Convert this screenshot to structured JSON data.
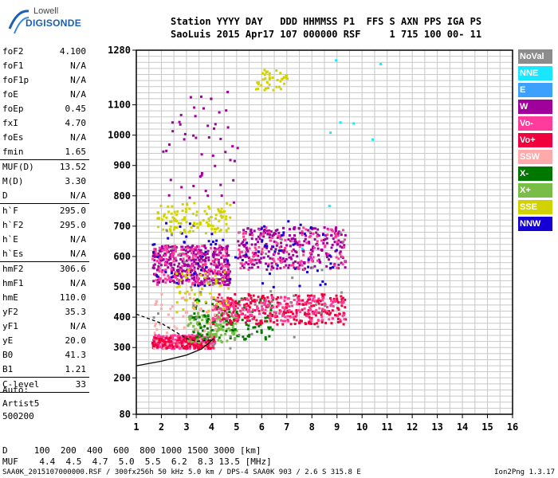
{
  "logo": {
    "line1": "Lowell",
    "line2": "DIGISONDE"
  },
  "header": {
    "line1": "Station YYYY DAY   DDD HHMMSS P1  FFS S AXN PPS IGA PS",
    "line2": "SaoLuis 2015 Apr17 107 000000 RSF     1 715 100 00- 11"
  },
  "params": [
    {
      "name": "foF2",
      "value": "4.100"
    },
    {
      "name": "foF1",
      "value": "N/A"
    },
    {
      "name": "foF1p",
      "value": "N/A"
    },
    {
      "name": "foE",
      "value": "N/A"
    },
    {
      "name": "foEp",
      "value": "0.45"
    },
    {
      "name": "fxI",
      "value": "4.70"
    },
    {
      "name": "foEs",
      "value": "N/A"
    },
    {
      "name": "fmin",
      "value": "1.65"
    },
    {
      "name": "MUF(D)",
      "value": "13.52"
    },
    {
      "name": "M(D)",
      "value": "3.30"
    },
    {
      "name": "D",
      "value": "N/A"
    },
    {
      "name": "h`F",
      "value": "295.0"
    },
    {
      "name": "h`F2",
      "value": "295.0"
    },
    {
      "name": "h`E",
      "value": "N/A"
    },
    {
      "name": "h`Es",
      "value": "N/A"
    },
    {
      "name": "hmF2",
      "value": "306.6"
    },
    {
      "name": "hmF1",
      "value": "N/A"
    },
    {
      "name": "hmE",
      "value": "110.0"
    },
    {
      "name": "yF2",
      "value": "35.3"
    },
    {
      "name": "yF1",
      "value": "N/A"
    },
    {
      "name": "yE",
      "value": "20.0"
    },
    {
      "name": "B0",
      "value": "41.3"
    },
    {
      "name": "B1",
      "value": "1.21"
    },
    {
      "name": "C-level",
      "value": "33"
    }
  ],
  "auto": {
    "line1": "Auto:",
    "line2": "Artist5",
    "line3": "500200"
  },
  "legend": [
    {
      "label": "NoVal",
      "color": "#8c8c8c"
    },
    {
      "label": "NNE",
      "color": "#19e6ff"
    },
    {
      "label": "E",
      "color": "#3ca0ff"
    },
    {
      "label": "W",
      "color": "#a0009b"
    },
    {
      "label": "Vo-",
      "color": "#ff3c9b"
    },
    {
      "label": "Vo+",
      "color": "#f0003c"
    },
    {
      "label": "SSW",
      "color": "#ffaaaa"
    },
    {
      "label": "X-",
      "color": "#007800"
    },
    {
      "label": "X+",
      "color": "#78be46"
    },
    {
      "label": "SSE",
      "color": "#d2d200"
    },
    {
      "label": "NNW",
      "color": "#1400d2"
    }
  ],
  "muf_table": {
    "d_row": "D     100  200  400  600  800 1000 1500 3000 [km]",
    "muf_row": "MUF    4.4  4.5  4.7  5.0  5.5  6.2  8.3 13.5 [MHz]"
  },
  "footer": {
    "left": "SAA0K_2015107000000.RSF / 300fx256h 50 kHz 5.0 km / DPS-4 SAA0K 903 / 2.6 S 315.8 E",
    "right": "Ion2Png 1.3.17"
  },
  "chart_data": {
    "type": "scatter",
    "title": "",
    "xlabel": "",
    "ylabel": "",
    "xlim": [
      1,
      16
    ],
    "ylim": [
      80,
      1280
    ],
    "x_ticks": [
      "1",
      "2",
      "3",
      "4",
      "5",
      "6",
      "7",
      "8",
      "9",
      "10",
      "11",
      "12",
      "13",
      "14",
      "15",
      "16"
    ],
    "y_ticks": [
      {
        "value": 80,
        "label": "80"
      },
      {
        "value": 200,
        "label": "200"
      },
      {
        "value": 300,
        "label": "300"
      },
      {
        "value": 400,
        "label": "400"
      },
      {
        "value": 500,
        "label": "500"
      },
      {
        "value": 600,
        "label": "600"
      },
      {
        "value": 700,
        "label": "700"
      },
      {
        "value": 800,
        "label": "800"
      },
      {
        "value": 900,
        "label": "900"
      },
      {
        "value": 1000,
        "label": "1000"
      },
      {
        "value": 1100,
        "label": "1100"
      },
      {
        "value": 1280,
        "label": "1280"
      }
    ],
    "grid": true,
    "echo_regions": [
      {
        "series": "Vo-",
        "x": [
          1.6,
          4.1
        ],
        "y": [
          300,
          345
        ],
        "density": 260
      },
      {
        "series": "Vo+",
        "x": [
          1.6,
          4.1
        ],
        "y": [
          300,
          340
        ],
        "density": 140
      },
      {
        "series": "X+",
        "x": [
          3.0,
          5.0
        ],
        "y": [
          320,
          420
        ],
        "density": 120
      },
      {
        "series": "X-",
        "x": [
          3.2,
          6.5
        ],
        "y": [
          330,
          470
        ],
        "density": 120
      },
      {
        "series": "Vo+",
        "x": [
          4.0,
          9.3
        ],
        "y": [
          380,
          480
        ],
        "density": 260
      },
      {
        "series": "Vo-",
        "x": [
          4.0,
          9.3
        ],
        "y": [
          390,
          470
        ],
        "density": 180
      },
      {
        "series": "W",
        "x": [
          1.6,
          4.7
        ],
        "y": [
          510,
          640
        ],
        "density": 360
      },
      {
        "series": "Vo-",
        "x": [
          1.6,
          4.7
        ],
        "y": [
          510,
          640
        ],
        "density": 140
      },
      {
        "series": "W",
        "x": [
          5.0,
          9.3
        ],
        "y": [
          560,
          700
        ],
        "density": 280
      },
      {
        "series": "Vo-",
        "x": [
          5.0,
          9.3
        ],
        "y": [
          560,
          700
        ],
        "density": 120
      },
      {
        "series": "NNW",
        "x": [
          1.6,
          9.0
        ],
        "y": [
          500,
          720
        ],
        "density": 80
      },
      {
        "series": "SSE",
        "x": [
          1.8,
          4.7
        ],
        "y": [
          680,
          780
        ],
        "density": 110
      },
      {
        "series": "SSE",
        "x": [
          2.5,
          4.7
        ],
        "y": [
          420,
          560
        ],
        "density": 50
      },
      {
        "series": "SSE",
        "x": [
          5.7,
          7.0
        ],
        "y": [
          1150,
          1220
        ],
        "density": 40
      },
      {
        "series": "W",
        "x": [
          2.0,
          5.0
        ],
        "y": [
          780,
          1150
        ],
        "density": 50
      },
      {
        "series": "SSW",
        "x": [
          1.6,
          4.3
        ],
        "y": [
          300,
          480
        ],
        "density": 60
      },
      {
        "series": "NoVal",
        "x": [
          1.6,
          9.3
        ],
        "y": [
          300,
          700
        ],
        "density": 40
      },
      {
        "series": "NNE",
        "x": [
          7.5,
          11.5
        ],
        "y": [
          600,
          1280
        ],
        "density": 8
      }
    ],
    "profile_curves": [
      {
        "name": "profile-lower",
        "points": [
          [
            1,
            240
          ],
          [
            2,
            255
          ],
          [
            3,
            275
          ],
          [
            3.6,
            295
          ],
          [
            4.1,
            330
          ]
        ]
      },
      {
        "name": "profile-upper",
        "points": [
          [
            1,
            410
          ],
          [
            2,
            380
          ],
          [
            2.6,
            350
          ],
          [
            3.0,
            330
          ],
          [
            3.4,
            320
          ],
          [
            4.0,
            325
          ]
        ]
      }
    ]
  }
}
